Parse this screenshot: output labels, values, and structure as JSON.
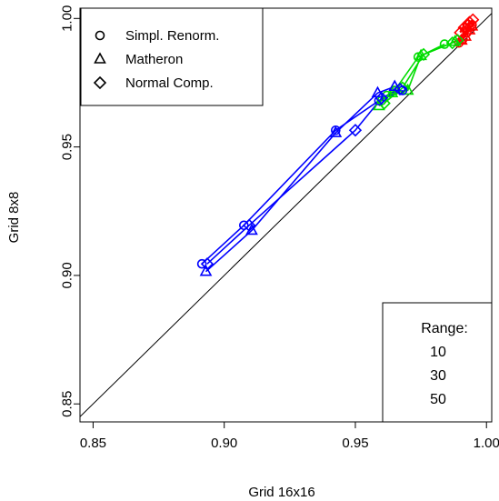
{
  "chart_data": {
    "type": "scatter",
    "xlabel": "Grid 16x16",
    "ylabel": "Grid 8x8",
    "xlim": [
      0.845,
      1.002
    ],
    "ylim": [
      0.843,
      1.004
    ],
    "x_ticks": [
      "0.85",
      "0.90",
      "0.95",
      "1.00"
    ],
    "y_ticks": [
      "0.85",
      "0.90",
      "0.95",
      "1.00"
    ],
    "x_tick_values": [
      0.85,
      0.9,
      0.95,
      1.0
    ],
    "y_tick_values": [
      0.85,
      0.9,
      0.95,
      1.0
    ],
    "reference_line": "y = x",
    "legend_methods": {
      "placement": "top-left",
      "entries": [
        {
          "label": "Simpl. Renorm.",
          "marker": "circle"
        },
        {
          "label": "Matheron",
          "marker": "triangle"
        },
        {
          "label": "Normal Comp.",
          "marker": "diamond"
        }
      ]
    },
    "legend_range": {
      "placement": "bottom-right",
      "title": "Range:",
      "entries": [
        {
          "label": "10",
          "color": "#ff0000"
        },
        {
          "label": "30",
          "color": "#00dd00"
        },
        {
          "label": "50",
          "color": "#0000ff"
        }
      ]
    },
    "series": [
      {
        "range": "10",
        "color": "#ff0000",
        "points": [
          {
            "method": "circle",
            "x": 0.9895,
            "y": 0.9905
          },
          {
            "method": "circle",
            "x": 0.991,
            "y": 0.992
          },
          {
            "method": "circle",
            "x": 0.9925,
            "y": 0.9945
          },
          {
            "method": "circle",
            "x": 0.9935,
            "y": 0.9965
          },
          {
            "method": "circle",
            "x": 0.9945,
            "y": 0.9975
          },
          {
            "method": "triangle",
            "x": 0.9905,
            "y": 0.9915
          },
          {
            "method": "triangle",
            "x": 0.992,
            "y": 0.993
          },
          {
            "method": "triangle",
            "x": 0.9935,
            "y": 0.9955
          },
          {
            "method": "triangle",
            "x": 0.9945,
            "y": 0.997
          },
          {
            "method": "triangle",
            "x": 0.992,
            "y": 0.9965
          },
          {
            "method": "diamond",
            "x": 0.99,
            "y": 0.9945
          },
          {
            "method": "diamond",
            "x": 0.9915,
            "y": 0.9965
          },
          {
            "method": "diamond",
            "x": 0.9935,
            "y": 0.9985
          },
          {
            "method": "diamond",
            "x": 0.9948,
            "y": 0.9995
          },
          {
            "method": "diamond",
            "x": 0.993,
            "y": 0.9975
          }
        ]
      },
      {
        "range": "30",
        "color": "#00dd00",
        "points": [
          {
            "method": "circle",
            "x": 0.96,
            "y": 0.968
          },
          {
            "method": "circle",
            "x": 0.962,
            "y": 0.97
          },
          {
            "method": "circle",
            "x": 0.965,
            "y": 0.972
          },
          {
            "method": "circle",
            "x": 0.974,
            "y": 0.985
          },
          {
            "method": "circle",
            "x": 0.984,
            "y": 0.99
          },
          {
            "method": "triangle",
            "x": 0.959,
            "y": 0.966
          },
          {
            "method": "triangle",
            "x": 0.964,
            "y": 0.971
          },
          {
            "method": "triangle",
            "x": 0.97,
            "y": 0.972
          },
          {
            "method": "triangle",
            "x": 0.975,
            "y": 0.9855
          },
          {
            "method": "triangle",
            "x": 0.988,
            "y": 0.991
          },
          {
            "method": "diamond",
            "x": 0.961,
            "y": 0.967
          },
          {
            "method": "diamond",
            "x": 0.968,
            "y": 0.973
          },
          {
            "method": "diamond",
            "x": 0.976,
            "y": 0.986
          },
          {
            "method": "diamond",
            "x": 0.987,
            "y": 0.9905
          },
          {
            "method": "diamond",
            "x": 0.989,
            "y": 0.9915
          }
        ]
      },
      {
        "range": "50",
        "color": "#0000ff",
        "points": [
          {
            "method": "circle",
            "x": 0.8915,
            "y": 0.9045
          },
          {
            "method": "circle",
            "x": 0.9075,
            "y": 0.9195
          },
          {
            "method": "circle",
            "x": 0.9425,
            "y": 0.9565
          },
          {
            "method": "circle",
            "x": 0.959,
            "y": 0.968
          },
          {
            "method": "circle",
            "x": 0.968,
            "y": 0.972
          },
          {
            "method": "triangle",
            "x": 0.893,
            "y": 0.9015
          },
          {
            "method": "triangle",
            "x": 0.9105,
            "y": 0.9175
          },
          {
            "method": "triangle",
            "x": 0.9425,
            "y": 0.9555
          },
          {
            "method": "triangle",
            "x": 0.9585,
            "y": 0.971
          },
          {
            "method": "triangle",
            "x": 0.965,
            "y": 0.9735
          },
          {
            "method": "diamond",
            "x": 0.8935,
            "y": 0.9045
          },
          {
            "method": "diamond",
            "x": 0.9095,
            "y": 0.9195
          },
          {
            "method": "diamond",
            "x": 0.95,
            "y": 0.9565
          },
          {
            "method": "diamond",
            "x": 0.96,
            "y": 0.969
          },
          {
            "method": "diamond",
            "x": 0.967,
            "y": 0.9725
          }
        ]
      }
    ]
  }
}
